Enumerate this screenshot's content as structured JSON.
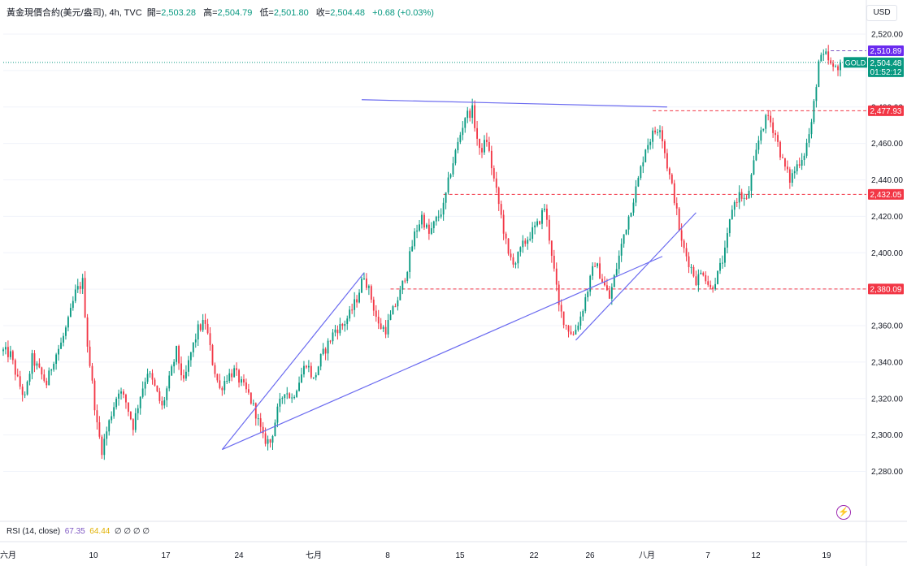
{
  "header": {
    "symbol": "黃金現價合約(美元/盎司), 4h, TVC",
    "open_label": "開=",
    "open": "2,503.28",
    "high_label": "高=",
    "high": "2,504.79",
    "low_label": "低=",
    "low": "2,501.80",
    "close_label": "收=",
    "close": "2,504.48",
    "change": "+0.68 (+0.03%)"
  },
  "currency_button": "USD",
  "rsi": {
    "label": "RSI (14, close)",
    "value1": "67.35",
    "value2": "64.44",
    "placeholders": "∅ ∅ ∅ ∅"
  },
  "colors": {
    "up": "#089981",
    "down": "#f23645",
    "trendline": "#6b6bf0",
    "level": "#f23645",
    "high_level": "#7e57c2",
    "rsi_1": "#7e57c2",
    "rsi_2": "#f5c518"
  },
  "chart_data": {
    "type": "candlestick",
    "timeframe": "4h",
    "y_ticks": [
      2280,
      2300,
      2320,
      2340,
      2360,
      2380,
      2400,
      2420,
      2440,
      2460,
      2480,
      2500,
      2520
    ],
    "x_ticks": [
      "六月",
      "10",
      "17",
      "24",
      "七月",
      "8",
      "15",
      "22",
      "26",
      "八月",
      "7",
      "12",
      "19"
    ],
    "price_labels": [
      {
        "value": "2,510.89",
        "price": 2510.89,
        "style": "high"
      },
      {
        "value": "2,504.48",
        "price": 2504.48,
        "style": "current",
        "tag": "GOLD",
        "countdown": "01:52:12"
      },
      {
        "value": "2,477.93",
        "price": 2477.93,
        "style": "level"
      },
      {
        "value": "2,432.05",
        "price": 2432.05,
        "style": "level"
      },
      {
        "value": "2,380.09",
        "price": 2380.09,
        "style": "level"
      }
    ],
    "path": [
      [
        0,
        2346
      ],
      [
        3,
        2344
      ],
      [
        6,
        2330
      ],
      [
        9,
        2320
      ],
      [
        12,
        2342
      ],
      [
        15,
        2335
      ],
      [
        18,
        2328
      ],
      [
        21,
        2342
      ],
      [
        24,
        2350
      ],
      [
        27,
        2362
      ],
      [
        30,
        2378
      ],
      [
        33,
        2384
      ],
      [
        35,
        2350
      ],
      [
        37,
        2328
      ],
      [
        39,
        2305
      ],
      [
        41,
        2292
      ],
      [
        43,
        2302
      ],
      [
        45,
        2312
      ],
      [
        48,
        2325
      ],
      [
        51,
        2318
      ],
      [
        54,
        2305
      ],
      [
        57,
        2322
      ],
      [
        60,
        2335
      ],
      [
        63,
        2326
      ],
      [
        66,
        2315
      ],
      [
        69,
        2330
      ],
      [
        72,
        2346
      ],
      [
        75,
        2328
      ],
      [
        78,
        2345
      ],
      [
        81,
        2358
      ],
      [
        84,
        2362
      ],
      [
        87,
        2340
      ],
      [
        90,
        2325
      ],
      [
        93,
        2332
      ],
      [
        96,
        2335
      ],
      [
        99,
        2328
      ],
      [
        102,
        2322
      ],
      [
        105,
        2312
      ],
      [
        108,
        2298
      ],
      [
        111,
        2296
      ],
      [
        114,
        2313
      ],
      [
        117,
        2325
      ],
      [
        120,
        2320
      ],
      [
        123,
        2330
      ],
      [
        126,
        2340
      ],
      [
        129,
        2330
      ],
      [
        132,
        2342
      ],
      [
        135,
        2350
      ],
      [
        138,
        2358
      ],
      [
        141,
        2360
      ],
      [
        144,
        2366
      ],
      [
        147,
        2375
      ],
      [
        150,
        2388
      ],
      [
        153,
        2375
      ],
      [
        156,
        2360
      ],
      [
        159,
        2358
      ],
      [
        162,
        2368
      ],
      [
        165,
        2378
      ],
      [
        168,
        2392
      ],
      [
        171,
        2410
      ],
      [
        174,
        2420
      ],
      [
        177,
        2410
      ],
      [
        180,
        2418
      ],
      [
        183,
        2425
      ],
      [
        186,
        2445
      ],
      [
        189,
        2460
      ],
      [
        192,
        2475
      ],
      [
        195,
        2478
      ],
      [
        198,
        2455
      ],
      [
        201,
        2462
      ],
      [
        204,
        2440
      ],
      [
        207,
        2420
      ],
      [
        210,
        2398
      ],
      [
        213,
        2395
      ],
      [
        216,
        2404
      ],
      [
        219,
        2410
      ],
      [
        222,
        2415
      ],
      [
        225,
        2425
      ],
      [
        228,
        2400
      ],
      [
        231,
        2370
      ],
      [
        234,
        2360
      ],
      [
        237,
        2355
      ],
      [
        240,
        2365
      ],
      [
        243,
        2380
      ],
      [
        246,
        2395
      ],
      [
        249,
        2385
      ],
      [
        252,
        2375
      ],
      [
        255,
        2392
      ],
      [
        258,
        2410
      ],
      [
        261,
        2425
      ],
      [
        264,
        2440
      ],
      [
        267,
        2458
      ],
      [
        270,
        2465
      ],
      [
        273,
        2470
      ],
      [
        276,
        2448
      ],
      [
        279,
        2430
      ],
      [
        282,
        2405
      ],
      [
        285,
        2395
      ],
      [
        288,
        2385
      ],
      [
        291,
        2390
      ],
      [
        294,
        2380
      ],
      [
        297,
        2388
      ],
      [
        300,
        2400
      ],
      [
        303,
        2425
      ],
      [
        306,
        2432
      ],
      [
        309,
        2428
      ],
      [
        312,
        2448
      ],
      [
        315,
        2468
      ],
      [
        318,
        2475
      ],
      [
        321,
        2465
      ],
      [
        324,
        2450
      ],
      [
        327,
        2440
      ],
      [
        330,
        2448
      ],
      [
        333,
        2455
      ],
      [
        336,
        2470
      ],
      [
        339,
        2505
      ],
      [
        342,
        2508
      ],
      [
        345,
        2500
      ],
      [
        348,
        2504
      ]
    ],
    "trendlines": [
      {
        "from": [
          91,
          2292
        ],
        "to": [
          150,
          2389
        ]
      },
      {
        "from": [
          91,
          2292
        ],
        "to": [
          274,
          2398
        ]
      },
      {
        "from": [
          238,
          2352
        ],
        "to": [
          288,
          2422
        ]
      },
      {
        "from": [
          149,
          2484
        ],
        "to": [
          276,
          2480
        ]
      }
    ],
    "rsi": {
      "period": 14,
      "source": "close"
    }
  }
}
